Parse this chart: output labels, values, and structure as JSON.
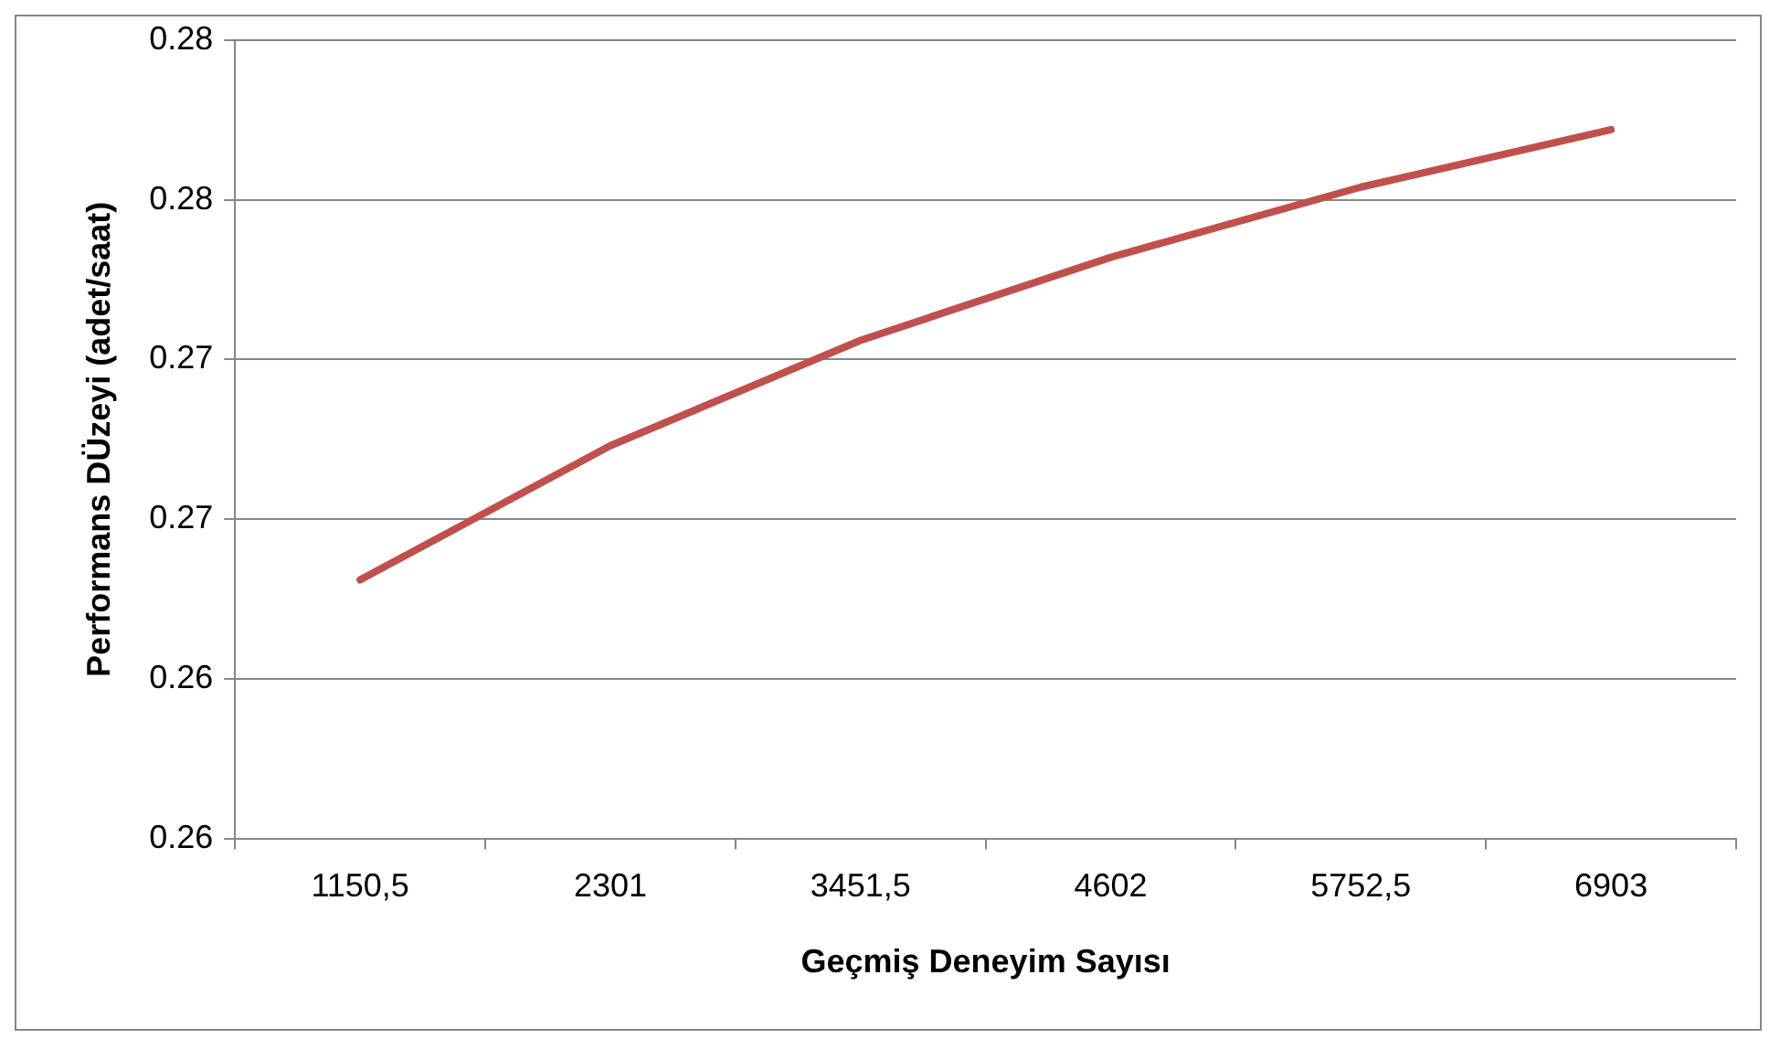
{
  "chart_data": {
    "type": "line",
    "xlabel": "Geçmiş Deneyim Sayısı",
    "ylabel": "Performans DÜzeyi (adet/saat)",
    "categories": [
      "1150,5",
      "2301",
      "3451,5",
      "4602",
      "5752,5",
      "6903"
    ],
    "series": [
      {
        "color": "#c0504d",
        "values": [
          0.2631,
          0.2673,
          0.2706,
          0.2732,
          0.2754,
          0.2772
        ]
      }
    ],
    "ylim": [
      0.255,
      0.28
    ],
    "yticks": [
      {
        "value": 0.255,
        "label": "0.26"
      },
      {
        "value": 0.26,
        "label": "0.26"
      },
      {
        "value": 0.265,
        "label": "0.27"
      },
      {
        "value": 0.27,
        "label": "0.27"
      },
      {
        "value": 0.275,
        "label": "0.28"
      },
      {
        "value": 0.28,
        "label": "0.28"
      }
    ],
    "grid": "y",
    "legend": false,
    "marker": "none",
    "line_style": "solid"
  }
}
